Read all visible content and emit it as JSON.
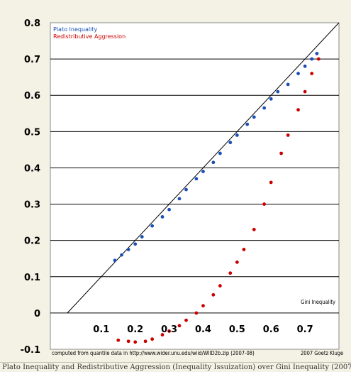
{
  "caption": "Plato Inequality and Redistributive Aggression (Inequality Issuization) over Gini Inequality (2007-08-18)",
  "colors": {
    "background": "#f4f2e4",
    "plot_background": "#ffffff",
    "plato": "#1a4fb8",
    "redistributive": "#cc0000",
    "grid": "#000000"
  },
  "chart_data": {
    "type": "scatter",
    "title": "",
    "xlabel": "Gini Inequality",
    "ylabel": "",
    "xlim": [
      -0.05,
      0.8
    ],
    "ylim": [
      -0.1,
      0.8
    ],
    "x_ticks": [
      "0.1",
      "0.2",
      "0.3",
      "0.4",
      "0.5",
      "0.6",
      "0.7"
    ],
    "x_tick_values": [
      0.1,
      0.2,
      0.3,
      0.4,
      0.5,
      0.6,
      0.7
    ],
    "y_ticks": [
      "0.8",
      "0.7",
      "0.6",
      "0.5",
      "0.4",
      "0.3",
      "0.2",
      "0.1",
      "0",
      "-0.1"
    ],
    "y_tick_values": [
      0.8,
      0.7,
      0.6,
      0.5,
      0.4,
      0.3,
      0.2,
      0.1,
      0,
      -0.1
    ],
    "grid": "horizontal",
    "reference_line": "y = x",
    "legend_position": "top-left",
    "source_note": "computed from quantile data in http://www.wider.unu.edu/wiid/WIID2b.zip (2007-08)",
    "credit_note": "2007 Goetz Kluge",
    "series": [
      {
        "name": "Plato Inequality",
        "color": "#1a4fb8",
        "points": [
          [
            0.14,
            0.145
          ],
          [
            0.16,
            0.16
          ],
          [
            0.18,
            0.175
          ],
          [
            0.2,
            0.19
          ],
          [
            0.22,
            0.21
          ],
          [
            0.25,
            0.24
          ],
          [
            0.28,
            0.265
          ],
          [
            0.3,
            0.285
          ],
          [
            0.33,
            0.315
          ],
          [
            0.35,
            0.34
          ],
          [
            0.38,
            0.37
          ],
          [
            0.4,
            0.39
          ],
          [
            0.43,
            0.415
          ],
          [
            0.45,
            0.44
          ],
          [
            0.48,
            0.47
          ],
          [
            0.5,
            0.49
          ],
          [
            0.53,
            0.52
          ],
          [
            0.55,
            0.54
          ],
          [
            0.58,
            0.565
          ],
          [
            0.6,
            0.59
          ],
          [
            0.62,
            0.61
          ],
          [
            0.65,
            0.63
          ],
          [
            0.68,
            0.66
          ],
          [
            0.7,
            0.68
          ],
          [
            0.72,
            0.7
          ],
          [
            0.735,
            0.715
          ]
        ]
      },
      {
        "name": "Redistributive Aggression",
        "color": "#cc0000",
        "points": [
          [
            0.15,
            -0.075
          ],
          [
            0.18,
            -0.078
          ],
          [
            0.2,
            -0.08
          ],
          [
            0.23,
            -0.078
          ],
          [
            0.25,
            -0.072
          ],
          [
            0.28,
            -0.06
          ],
          [
            0.3,
            -0.05
          ],
          [
            0.33,
            -0.035
          ],
          [
            0.35,
            -0.02
          ],
          [
            0.38,
            0.0
          ],
          [
            0.4,
            0.02
          ],
          [
            0.43,
            0.05
          ],
          [
            0.45,
            0.075
          ],
          [
            0.48,
            0.11
          ],
          [
            0.5,
            0.14
          ],
          [
            0.52,
            0.175
          ],
          [
            0.55,
            0.23
          ],
          [
            0.58,
            0.3
          ],
          [
            0.6,
            0.36
          ],
          [
            0.63,
            0.44
          ],
          [
            0.65,
            0.49
          ],
          [
            0.68,
            0.56
          ],
          [
            0.7,
            0.61
          ],
          [
            0.72,
            0.66
          ],
          [
            0.74,
            0.7
          ]
        ]
      }
    ]
  }
}
